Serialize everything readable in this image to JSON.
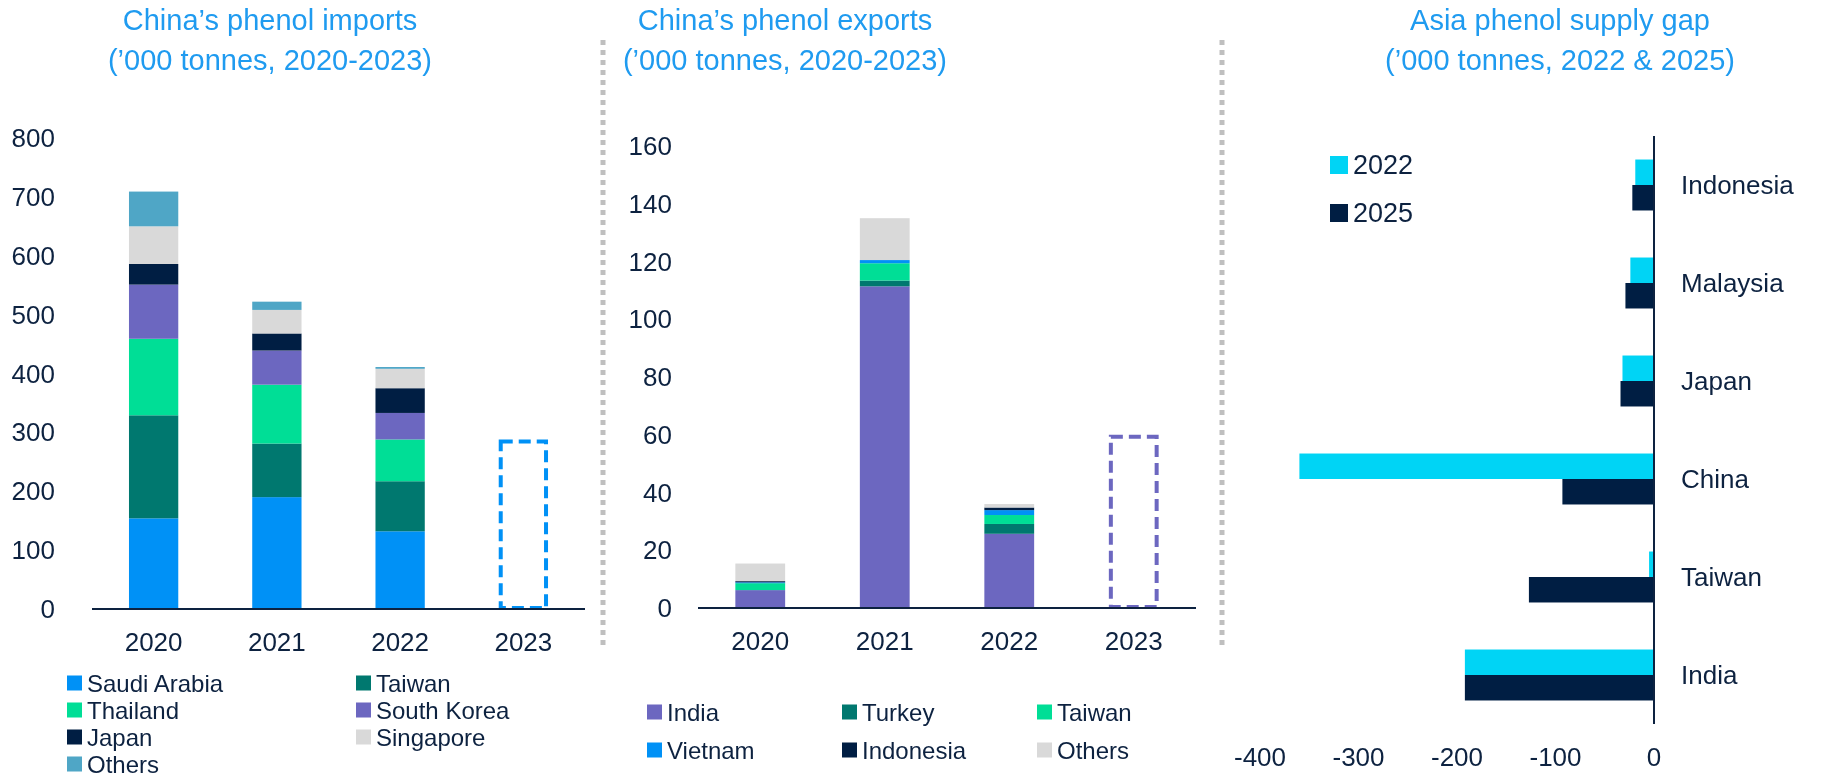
{
  "chart_data": [
    {
      "type": "bar",
      "title": "China’s phenol imports",
      "subtitle": "(’000 tonnes, 2020-2023)",
      "categories": [
        "2020",
        "2021",
        "2022",
        "2023"
      ],
      "stacked": true,
      "ylim": [
        0,
        800
      ],
      "yticks": [
        0,
        100,
        200,
        300,
        400,
        500,
        600,
        700,
        800
      ],
      "legend": "bottom",
      "series": [
        {
          "name": "Saudi Arabia",
          "color": "#0091f6",
          "values": [
            154,
            190,
            132,
            null
          ]
        },
        {
          "name": "Taiwan",
          "color": "#00786f",
          "values": [
            175,
            91,
            85,
            null
          ]
        },
        {
          "name": "Thailand",
          "color": "#00de96",
          "values": [
            130,
            100,
            71,
            null
          ]
        },
        {
          "name": "South Korea",
          "color": "#6c67c0",
          "values": [
            92,
            58,
            45,
            null
          ]
        },
        {
          "name": "Japan",
          "color": "#001e43",
          "values": [
            35,
            29,
            42,
            null
          ]
        },
        {
          "name": "Singapore",
          "color": "#d9d9d9",
          "values": [
            64,
            40,
            33,
            null
          ]
        },
        {
          "name": "Others",
          "color": "#4fa6c6",
          "values": [
            59,
            14,
            3,
            null
          ]
        },
        {
          "color": "#0091f6",
          "line_style": "dashed",
          "values": [
            null,
            null,
            null,
            288
          ]
        }
      ]
    },
    {
      "type": "bar",
      "title": "China’s phenol exports",
      "subtitle": "(’000 tonnes, 2020-2023)",
      "categories": [
        "2020",
        "2021",
        "2022",
        "2023"
      ],
      "stacked": true,
      "ylim": [
        0,
        160
      ],
      "yticks": [
        0,
        20,
        40,
        60,
        80,
        100,
        120,
        140,
        160
      ],
      "legend": "bottom",
      "series": [
        {
          "name": "India",
          "color": "#6c67c0",
          "values": [
            6.2,
            111.4,
            25.7,
            null
          ]
        },
        {
          "name": "Turkey",
          "color": "#00786f",
          "values": [
            null,
            2,
            3.4,
            null
          ]
        },
        {
          "name": "Taiwan",
          "color": "#00de96",
          "values": [
            2.4,
            6,
            3.1,
            null
          ]
        },
        {
          "name": "Vietnam",
          "color": "#0091f6",
          "values": [
            0.3,
            1.1,
            1.7,
            null
          ]
        },
        {
          "name": "Indonesia",
          "color": "#001e43",
          "values": [
            0.4,
            null,
            0.9,
            null
          ]
        },
        {
          "name": "Others",
          "color": "#d9d9d9",
          "values": [
            6.1,
            14.5,
            1.2,
            null
          ]
        },
        {
          "color": "#6c67c0",
          "line_style": "dashed",
          "values": [
            null,
            null,
            null,
            60
          ]
        }
      ]
    },
    {
      "type": "bar",
      "title": "Asia phenol supply gap",
      "subtitle": "(’000 tonnes, 2022 & 2025)",
      "orientation": "horizontal",
      "categories": [
        "Indonesia",
        "Malaysia",
        "Japan",
        "China",
        "Taiwan",
        "India"
      ],
      "xlim": [
        -400,
        0
      ],
      "xticks": [
        -400,
        -300,
        -200,
        -100,
        0
      ],
      "legend": "top left",
      "series": [
        {
          "name": "2022",
          "color": "#00d4f5",
          "values": [
            -19,
            -24,
            -32,
            -360,
            -5,
            -192
          ]
        },
        {
          "name": "2025",
          "color": "#001e43",
          "values": [
            -22,
            -29,
            -34,
            -93,
            -127,
            -192
          ]
        }
      ]
    }
  ]
}
